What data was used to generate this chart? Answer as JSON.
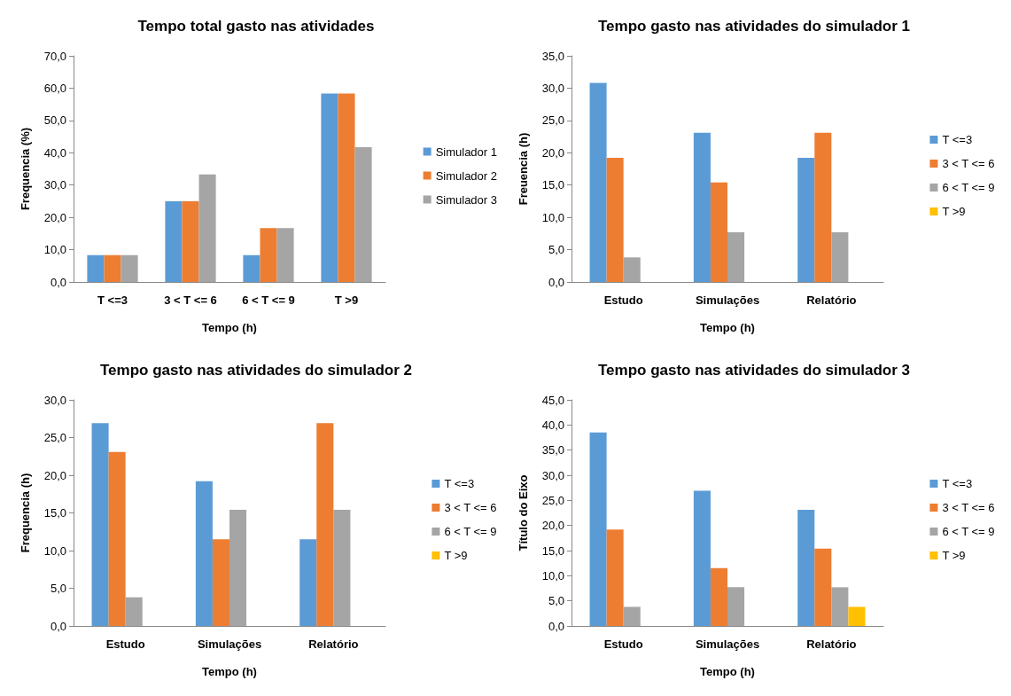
{
  "chart_data": [
    {
      "type": "bar",
      "title": "Tempo total gasto nas atividades",
      "xlabel": "Tempo (h)",
      "ylabel": "Frequencia (%)",
      "categories": [
        "T <=3",
        "3 < T <= 6",
        "6 < T <= 9",
        "T >9"
      ],
      "series": [
        {
          "name": "Simulador 1",
          "color": "#5b9bd5",
          "values": [
            8.3,
            25.0,
            8.3,
            58.3
          ]
        },
        {
          "name": "Simulador 2",
          "color": "#ed7d31",
          "values": [
            8.3,
            25.0,
            16.7,
            58.3
          ]
        },
        {
          "name": "Simulador 3",
          "color": "#a5a5a5",
          "values": [
            8.3,
            33.3,
            16.7,
            41.7
          ]
        }
      ],
      "ylim": [
        0,
        70
      ],
      "yticks": [
        {
          "value": 0,
          "label": "0,0"
        },
        {
          "value": 10,
          "label": "10,0"
        },
        {
          "value": 20,
          "label": "20,0"
        },
        {
          "value": 30,
          "label": "30,0"
        },
        {
          "value": 40,
          "label": "40,0"
        },
        {
          "value": 50,
          "label": "50,0"
        },
        {
          "value": 60,
          "label": "60,0"
        },
        {
          "value": 70,
          "label": "70,0"
        }
      ],
      "grid": false,
      "legend": "right"
    },
    {
      "type": "bar",
      "title": "Tempo gasto nas atividades do simulador 1",
      "xlabel": "Tempo (h)",
      "ylabel": "Freuencia (h)",
      "categories": [
        "Estudo",
        "Simulações",
        "Relatório"
      ],
      "series": [
        {
          "name": "T <=3",
          "color": "#5b9bd5",
          "values": [
            30.8,
            23.1,
            19.2
          ]
        },
        {
          "name": "3 < T <= 6",
          "color": "#ed7d31",
          "values": [
            19.2,
            15.4,
            23.1
          ]
        },
        {
          "name": "6 < T <= 9",
          "color": "#a5a5a5",
          "values": [
            3.8,
            7.7,
            7.7
          ]
        },
        {
          "name": "T >9",
          "color": "#ffc000",
          "values": [
            0,
            0,
            0
          ]
        }
      ],
      "ylim": [
        0,
        35
      ],
      "yticks": [
        {
          "value": 0,
          "label": "0,0"
        },
        {
          "value": 5,
          "label": "5,0"
        },
        {
          "value": 10,
          "label": "10,0"
        },
        {
          "value": 15,
          "label": "15,0"
        },
        {
          "value": 20,
          "label": "20,0"
        },
        {
          "value": 25,
          "label": "25,0"
        },
        {
          "value": 30,
          "label": "30,0"
        },
        {
          "value": 35,
          "label": "35,0"
        }
      ],
      "grid": false,
      "legend": "right"
    },
    {
      "type": "bar",
      "title": "Tempo gasto nas atividades do simulador 2",
      "xlabel": "Tempo (h)",
      "ylabel": "Frequencia (h)",
      "categories": [
        "Estudo",
        "Simulações",
        "Relatório"
      ],
      "series": [
        {
          "name": "T <=3",
          "color": "#5b9bd5",
          "values": [
            26.9,
            19.2,
            11.5
          ]
        },
        {
          "name": "3 < T <= 6",
          "color": "#ed7d31",
          "values": [
            23.1,
            11.5,
            26.9
          ]
        },
        {
          "name": "6 < T <= 9",
          "color": "#a5a5a5",
          "values": [
            3.8,
            15.4,
            15.4
          ]
        },
        {
          "name": "T >9",
          "color": "#ffc000",
          "values": [
            0,
            0,
            0
          ]
        }
      ],
      "ylim": [
        0,
        30
      ],
      "yticks": [
        {
          "value": 0,
          "label": "0,0"
        },
        {
          "value": 5,
          "label": "5,0"
        },
        {
          "value": 10,
          "label": "10,0"
        },
        {
          "value": 15,
          "label": "15,0"
        },
        {
          "value": 20,
          "label": "20,0"
        },
        {
          "value": 25,
          "label": "25,0"
        },
        {
          "value": 30,
          "label": "30,0"
        }
      ],
      "grid": false,
      "legend": "right"
    },
    {
      "type": "bar",
      "title": "Tempo gasto nas atividades do simulador 3",
      "xlabel": "Tempo (h)",
      "ylabel": "Título do Eixo",
      "categories": [
        "Estudo",
        "Simulações",
        "Relatório"
      ],
      "series": [
        {
          "name": "T <=3",
          "color": "#5b9bd5",
          "values": [
            38.5,
            26.9,
            23.1
          ]
        },
        {
          "name": "3 < T <= 6",
          "color": "#ed7d31",
          "values": [
            19.2,
            11.5,
            15.4
          ]
        },
        {
          "name": "6 < T <= 9",
          "color": "#a5a5a5",
          "values": [
            3.8,
            7.7,
            7.7
          ]
        },
        {
          "name": "T >9",
          "color": "#ffc000",
          "values": [
            0,
            0,
            3.8
          ]
        }
      ],
      "ylim": [
        0,
        45
      ],
      "yticks": [
        {
          "value": 0,
          "label": "0,0"
        },
        {
          "value": 5,
          "label": "5,0"
        },
        {
          "value": 10,
          "label": "10,0"
        },
        {
          "value": 15,
          "label": "15,0"
        },
        {
          "value": 20,
          "label": "20,0"
        },
        {
          "value": 25,
          "label": "25,0"
        },
        {
          "value": 30,
          "label": "30,0"
        },
        {
          "value": 35,
          "label": "35,0"
        },
        {
          "value": 40,
          "label": "40,0"
        },
        {
          "value": 45,
          "label": "45,0"
        }
      ],
      "grid": false,
      "legend": "right"
    }
  ]
}
